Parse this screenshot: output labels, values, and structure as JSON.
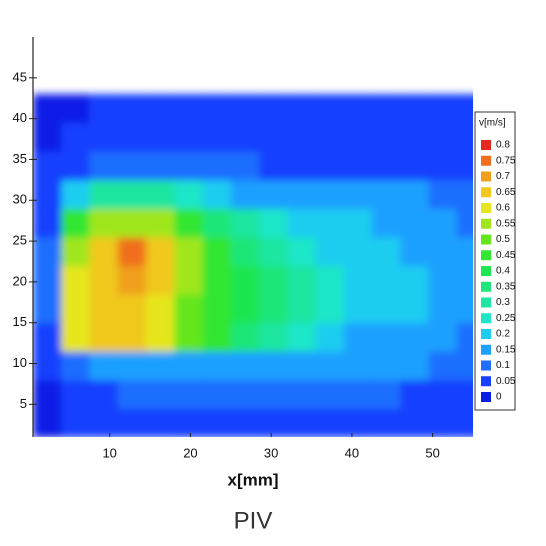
{
  "chart_data": {
    "type": "heatmap",
    "xlabel": "x[mm]",
    "caption": "PIV",
    "colorbar_title": "v[m/s]",
    "xlim": [
      0.5,
      55
    ],
    "ylim": [
      1,
      50
    ],
    "xticks": [
      10,
      20,
      30,
      40,
      50
    ],
    "yticks": [
      5,
      10,
      15,
      20,
      25,
      30,
      35,
      40,
      45
    ],
    "x": [
      2.25,
      5.75,
      9.25,
      12.75,
      16.25,
      19.75,
      23.25,
      26.75,
      30.25,
      33.75,
      37.25,
      40.75,
      44.25,
      47.75,
      51.25,
      54.75
    ],
    "y": [
      2.75,
      6.25,
      9.75,
      13.25,
      16.75,
      20.25,
      23.75,
      27.25,
      30.75,
      34.25,
      37.75,
      41.25
    ],
    "z": [
      [
        0.03,
        0.05,
        0.05,
        0.05,
        0.05,
        0.05,
        0.05,
        0.05,
        0.05,
        0.05,
        0.05,
        0.05,
        0.05,
        0.05,
        0.05,
        0.05
      ],
      [
        0.03,
        0.05,
        0.08,
        0.1,
        0.1,
        0.1,
        0.1,
        0.1,
        0.1,
        0.1,
        0.1,
        0.1,
        0.1,
        0.08,
        0.05,
        0.05
      ],
      [
        0.05,
        0.1,
        0.15,
        0.15,
        0.15,
        0.15,
        0.15,
        0.15,
        0.15,
        0.15,
        0.15,
        0.15,
        0.15,
        0.15,
        0.12,
        0.1
      ],
      [
        0.08,
        0.6,
        0.65,
        0.65,
        0.6,
        0.5,
        0.45,
        0.35,
        0.3,
        0.25,
        0.2,
        0.18,
        0.18,
        0.15,
        0.15,
        0.12
      ],
      [
        0.1,
        0.62,
        0.68,
        0.68,
        0.62,
        0.5,
        0.45,
        0.4,
        0.35,
        0.3,
        0.25,
        0.22,
        0.2,
        0.2,
        0.18,
        0.15
      ],
      [
        0.1,
        0.6,
        0.68,
        0.72,
        0.65,
        0.55,
        0.48,
        0.4,
        0.35,
        0.3,
        0.25,
        0.22,
        0.2,
        0.2,
        0.18,
        0.15
      ],
      [
        0.1,
        0.55,
        0.65,
        0.78,
        0.68,
        0.55,
        0.45,
        0.38,
        0.3,
        0.25,
        0.22,
        0.2,
        0.2,
        0.18,
        0.17,
        0.15
      ],
      [
        0.08,
        0.45,
        0.55,
        0.58,
        0.55,
        0.45,
        0.38,
        0.32,
        0.25,
        0.22,
        0.2,
        0.2,
        0.18,
        0.17,
        0.15,
        0.12
      ],
      [
        0.05,
        0.2,
        0.3,
        0.3,
        0.3,
        0.28,
        0.22,
        0.18,
        0.15,
        0.15,
        0.18,
        0.17,
        0.15,
        0.15,
        0.12,
        0.1
      ],
      [
        0.05,
        0.08,
        0.1,
        0.1,
        0.1,
        0.1,
        0.1,
        0.1,
        0.08,
        0.08,
        0.08,
        0.08,
        0.08,
        0.08,
        0.08,
        0.05
      ],
      [
        0.03,
        0.05,
        0.05,
        0.05,
        0.05,
        0.05,
        0.05,
        0.05,
        0.05,
        0.05,
        0.05,
        0.05,
        0.05,
        0.05,
        0.05,
        0.05
      ],
      [
        0.03,
        0.03,
        0.05,
        0.05,
        0.05,
        0.05,
        0.05,
        0.05,
        0.05,
        0.05,
        0.05,
        0.05,
        0.05,
        0.05,
        0.05,
        0.05
      ]
    ],
    "levels": [
      0,
      0.05,
      0.1,
      0.15,
      0.2,
      0.25,
      0.3,
      0.35,
      0.4,
      0.45,
      0.5,
      0.55,
      0.6,
      0.65,
      0.7,
      0.75,
      0.8
    ],
    "colors": [
      "#0a1ee6",
      "#1540ff",
      "#1e6eff",
      "#1ea0ff",
      "#1ecdf0",
      "#1ee6c8",
      "#1ee6a0",
      "#1ee678",
      "#1ee650",
      "#32e632",
      "#64e61e",
      "#a0e61e",
      "#e6e61e",
      "#f0c81e",
      "#f0a01e",
      "#f06e1e",
      "#e6281e"
    ]
  }
}
